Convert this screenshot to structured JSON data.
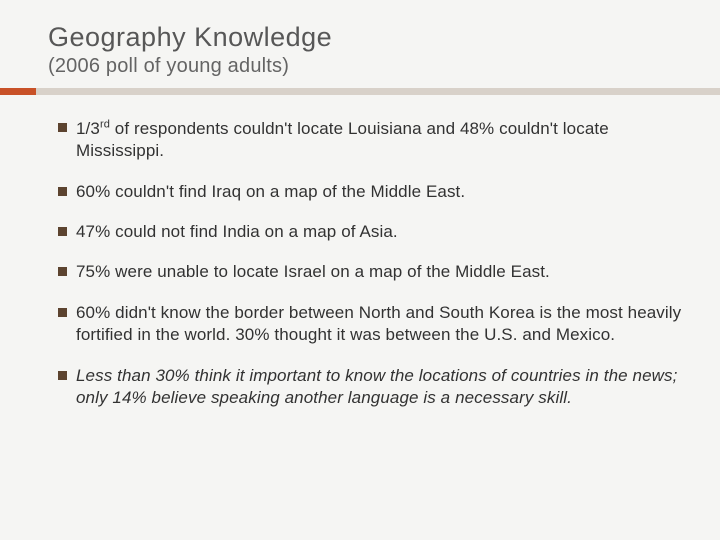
{
  "header": {
    "title": "Geography Knowledge",
    "subtitle": "(2006 poll of young adults)"
  },
  "colors": {
    "accent": "#c85127",
    "divider": "#d8d1c9",
    "bullet": "#5c432f",
    "title": "#575757",
    "subtitle": "#646464",
    "body_text": "#323232",
    "background": "#f5f5f3"
  },
  "bullets": [
    {
      "prefix": "1/3",
      "sup": "rd",
      "rest": " of respondents couldn't locate Louisiana and 48% couldn't locate Mississippi.",
      "italic": false
    },
    {
      "text": "60% couldn't find Iraq on a map of the Middle East.",
      "italic": false
    },
    {
      "text": "47% could not find India on a map of Asia.",
      "italic": false
    },
    {
      "text": "75% were unable to locate Israel on a map of the Middle East.",
      "italic": false
    },
    {
      "text": "60% didn't know the border between North and South Korea is the most heavily fortified in the world. 30% thought it was between the U.S. and Mexico.",
      "italic": false
    },
    {
      "text": "Less than 30% think it important to know the locations of countries in the news; only 14% believe speaking another language is a necessary skill.",
      "italic": true
    }
  ]
}
